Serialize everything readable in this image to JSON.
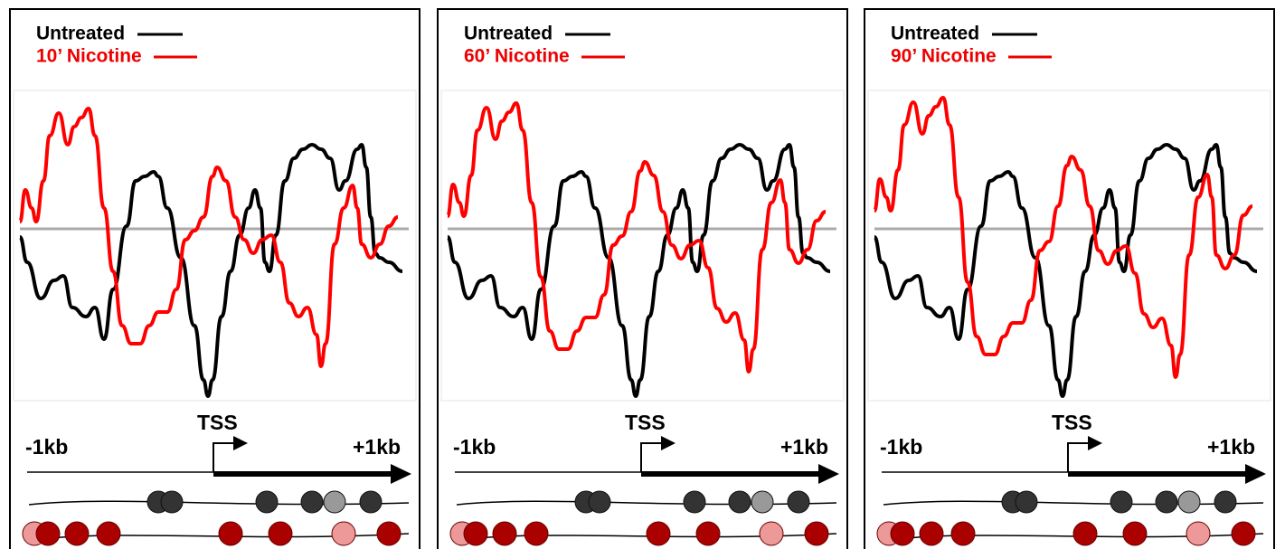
{
  "panels": [
    {
      "legend": [
        "Untreated",
        "10’ Nicotine"
      ],
      "tss": "TSS",
      "left": "-1kb",
      "right": "+1kb"
    },
    {
      "legend": [
        "Untreated",
        "60’ Nicotine"
      ],
      "tss": "TSS",
      "left": "-1kb",
      "right": "+1kb"
    },
    {
      "legend": [
        "Untreated",
        "90’ Nicotine"
      ],
      "tss": "TSS",
      "left": "-1kb",
      "right": "+1kb"
    }
  ]
}
